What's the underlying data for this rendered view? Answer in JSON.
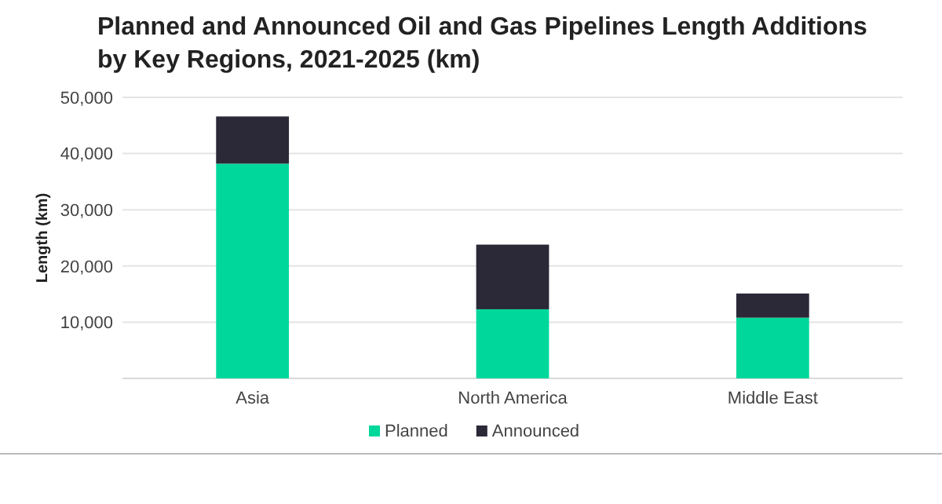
{
  "chart_data": {
    "type": "bar",
    "title": "Planned and Announced Oil and Gas Pipelines Length Additions by Key Regions, 2021-2025 (km)",
    "ylabel": "Length (km)",
    "categories": [
      "Asia",
      "North America",
      "Middle East"
    ],
    "stacked": true,
    "series": [
      {
        "name": "Planned",
        "color": "#00d89b",
        "values": [
          38200,
          12300,
          10800
        ]
      },
      {
        "name": "Announced",
        "color": "#2b2838",
        "values": [
          8400,
          11500,
          4300
        ]
      }
    ],
    "ylim": [
      0,
      50000
    ],
    "yticks": [
      {
        "value": 10000,
        "label": "10,000"
      },
      {
        "value": 20000,
        "label": "20,000"
      },
      {
        "value": 30000,
        "label": "30,000"
      },
      {
        "value": 40000,
        "label": "40,000"
      },
      {
        "value": 50000,
        "label": "50,000"
      }
    ],
    "grid": "y",
    "legend": "bottom"
  }
}
